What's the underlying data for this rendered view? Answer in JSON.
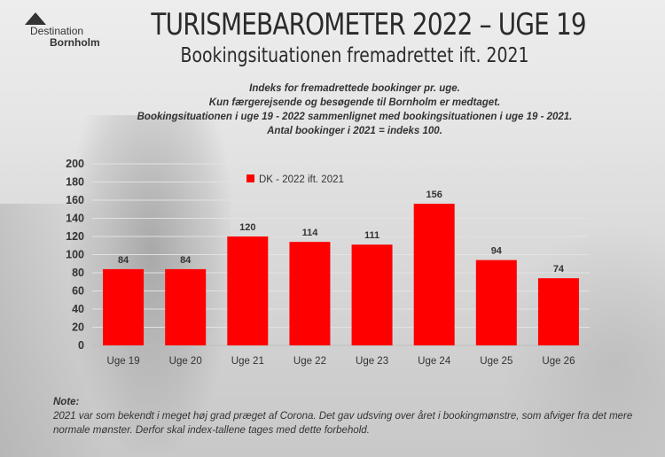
{
  "logo": {
    "line1": "Destination",
    "line2": "Bornholm"
  },
  "header": {
    "title": "TURISMEBAROMETER 2022 – UGE 19",
    "subtitle": "Bookingsituationen fremadrettet ift. 2021"
  },
  "description": [
    "Indeks for fremadrettede bookinger pr. uge.",
    "Kun færgerejsende og besøgende til Bornholm er medtaget.",
    "Bookingsituationen i uge 19 - 2022 sammenlignet med bookingsituationen i uge 19 - 2021.",
    "Antal bookinger i 2021 = indeks 100."
  ],
  "note": {
    "title": "Note:",
    "text": "2021 var som bekendt i meget høj grad præget af Corona. Det gav udsving over året i bookingmønstre, som afviger fra det mere normale mønster. Derfor skal index-tallene tages med dette forbehold."
  },
  "chart_data": {
    "type": "bar",
    "categories": [
      "Uge 19",
      "Uge 20",
      "Uge 21",
      "Uge 22",
      "Uge 23",
      "Uge 24",
      "Uge 25",
      "Uge 26"
    ],
    "series": [
      {
        "name": "DK - 2022 ift. 2021",
        "values": [
          84,
          84,
          120,
          114,
          111,
          156,
          94,
          74
        ],
        "color": "#ff0000"
      }
    ],
    "ylim": [
      0,
      200
    ],
    "yticks": [
      0,
      20,
      40,
      60,
      80,
      100,
      120,
      140,
      160,
      180,
      200
    ],
    "grid": true,
    "legend": "top-left inside plot",
    "data_labels": true
  }
}
